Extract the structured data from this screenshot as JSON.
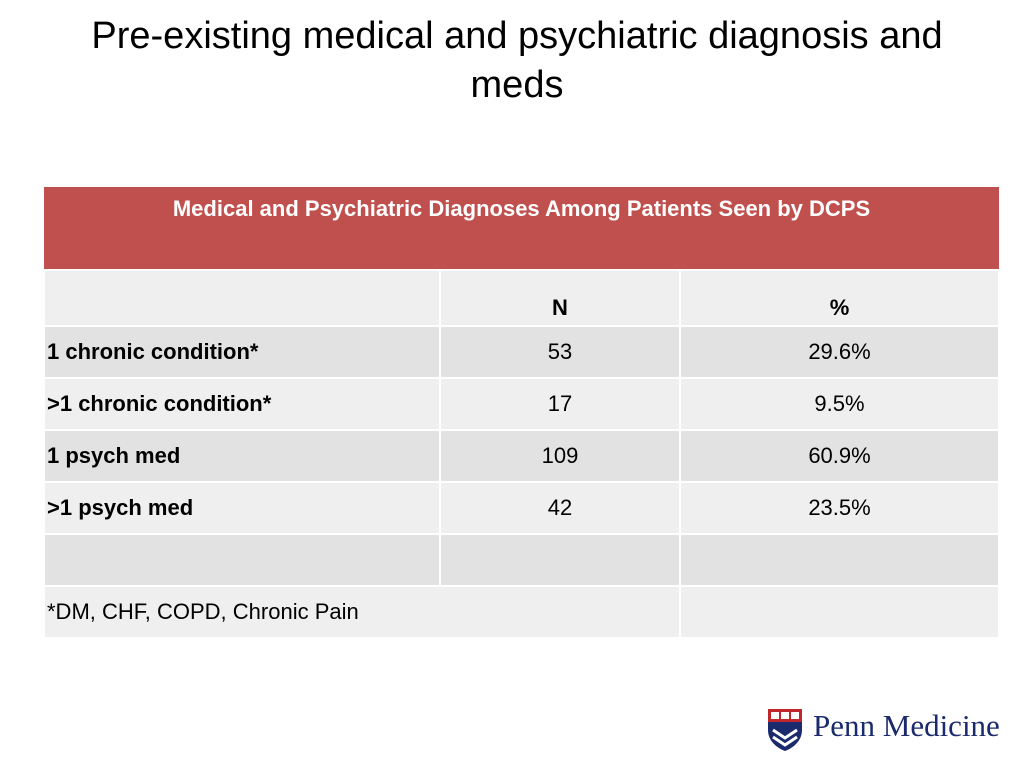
{
  "slide": {
    "title": "Pre-existing medical and psychiatric diagnosis and meds"
  },
  "table": {
    "caption": "Medical and Psychiatric Diagnoses Among Patients Seen by DCPS",
    "columns": [
      "",
      "N",
      "%"
    ],
    "rows": [
      {
        "label": "1 chronic condition*",
        "n": "53",
        "pct": "29.6%"
      },
      {
        "label": ">1 chronic condition*",
        "n": "17",
        "pct": "9.5%"
      },
      {
        "label": "1 psych med",
        "n": "109",
        "pct": "60.9%"
      },
      {
        "label": ">1 psych med",
        "n": "42",
        "pct": "23.5%"
      },
      {
        "label": "",
        "n": "",
        "pct": ""
      }
    ],
    "footnote": "*DM, CHF, COPD, Chronic Pain"
  },
  "logo": {
    "text": "Penn Medicine",
    "icon": "penn-shield-icon"
  },
  "colors": {
    "header_bg": "#c0504d",
    "row_light": "#efefef",
    "row_dark": "#e2e2e2",
    "logo_text": "#1a2a6c"
  }
}
